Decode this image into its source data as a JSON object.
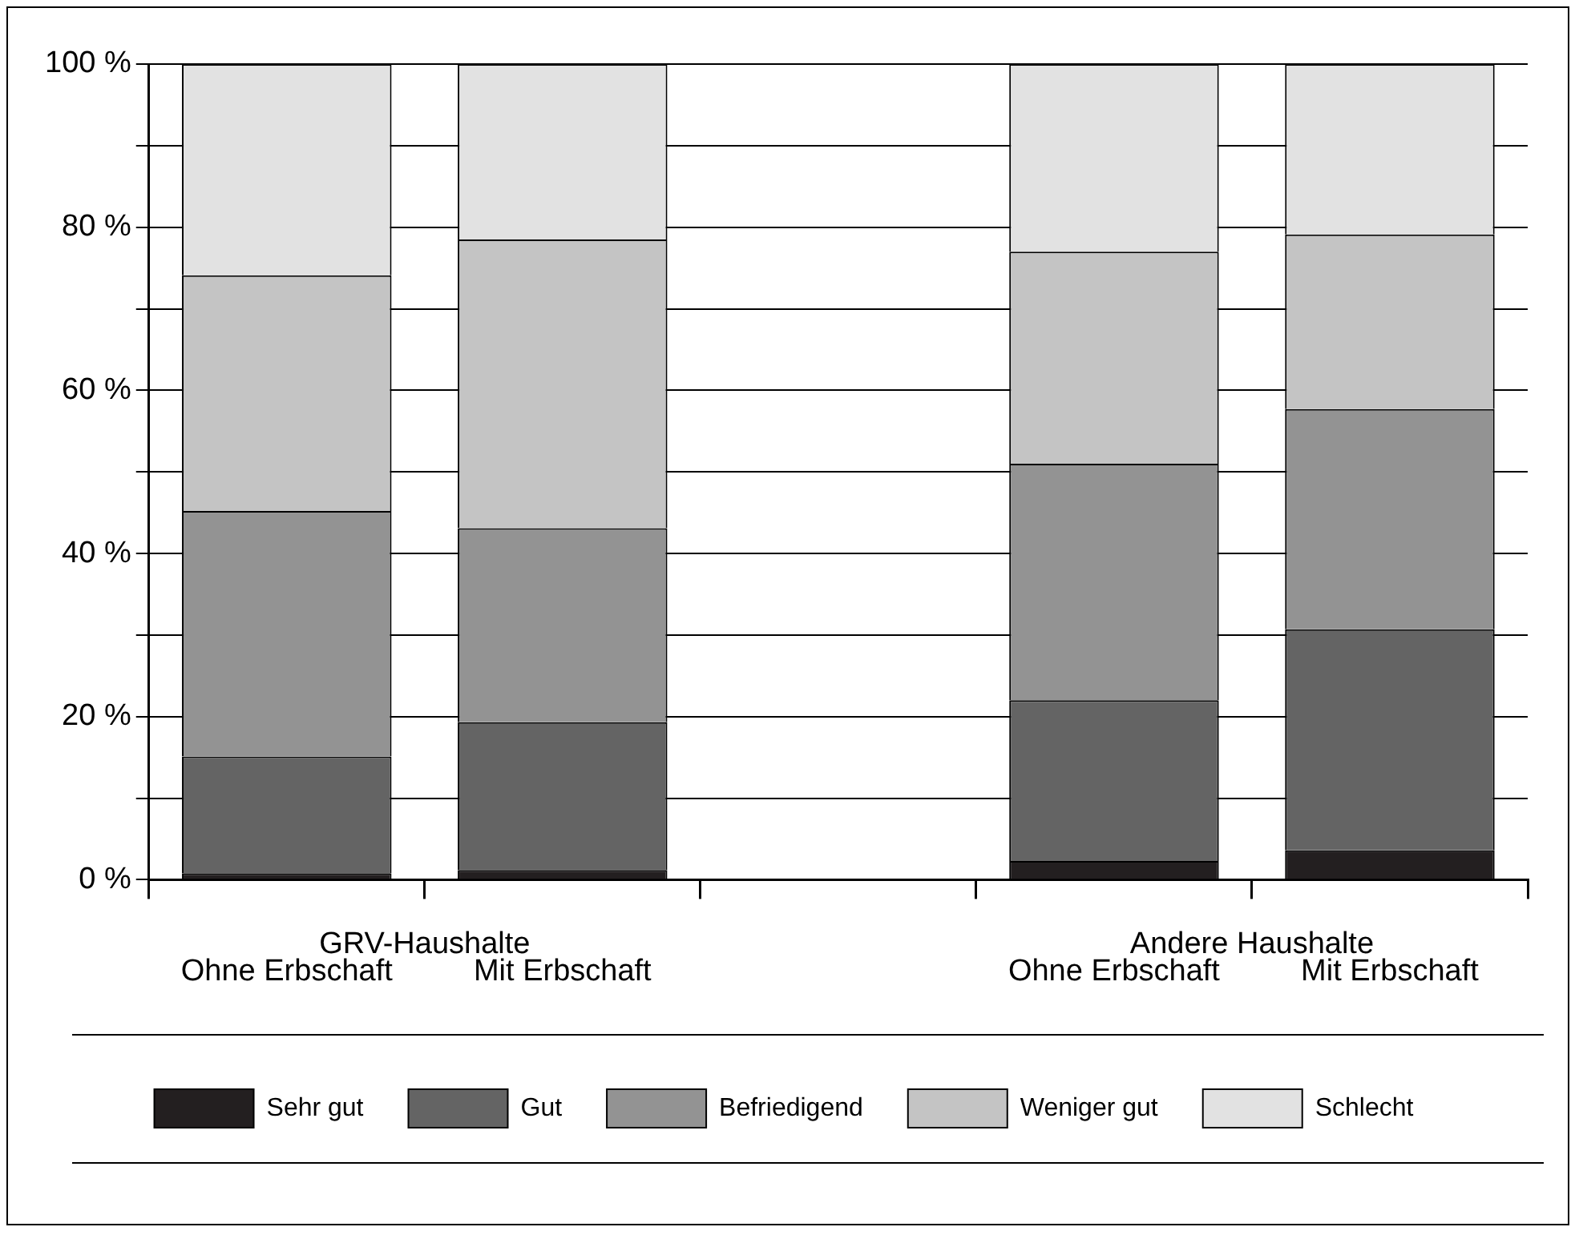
{
  "chart_data": {
    "type": "bar",
    "stacked": true,
    "categories": [
      "Ohne Erbschaft",
      "Mit Erbschaft",
      null,
      "Ohne Erbschaft",
      "Mit Erbschaft"
    ],
    "series": [
      {
        "name": "Sehr gut",
        "color": "#231f20",
        "values": [
          0.8,
          1.2,
          null,
          2.3,
          3.6
        ]
      },
      {
        "name": "Gut",
        "color": "#646464",
        "values": [
          14.3,
          18.1,
          null,
          19.7,
          27.1
        ]
      },
      {
        "name": "Befriedigend",
        "color": "#939393",
        "values": [
          30.1,
          23.8,
          null,
          29.0,
          27.0
        ]
      },
      {
        "name": "Weniger gut",
        "color": "#c4c4c4",
        "values": [
          28.9,
          35.4,
          null,
          26.0,
          21.4
        ]
      },
      {
        "name": "Schlecht",
        "color": "#e2e2e2",
        "values": [
          25.9,
          21.5,
          null,
          23.0,
          20.9
        ]
      }
    ],
    "annotations": [
      "GRV-Haushalte",
      "Andere Haushalte"
    ],
    "ylim": [
      0,
      100
    ],
    "yticks": [
      {
        "value": 0,
        "label": "0 %"
      },
      {
        "value": 10,
        "label": null
      },
      {
        "value": 20,
        "label": "20 %"
      },
      {
        "value": 30,
        "label": null
      },
      {
        "value": 40,
        "label": "40 %"
      },
      {
        "value": 50,
        "label": null
      },
      {
        "value": 60,
        "label": "60 %"
      },
      {
        "value": 70,
        "label": null
      },
      {
        "value": 80,
        "label": "80 %"
      },
      {
        "value": 90,
        "label": null
      },
      {
        "value": 100,
        "label": "100 %"
      }
    ],
    "grid": "y",
    "legend": "bottom"
  }
}
